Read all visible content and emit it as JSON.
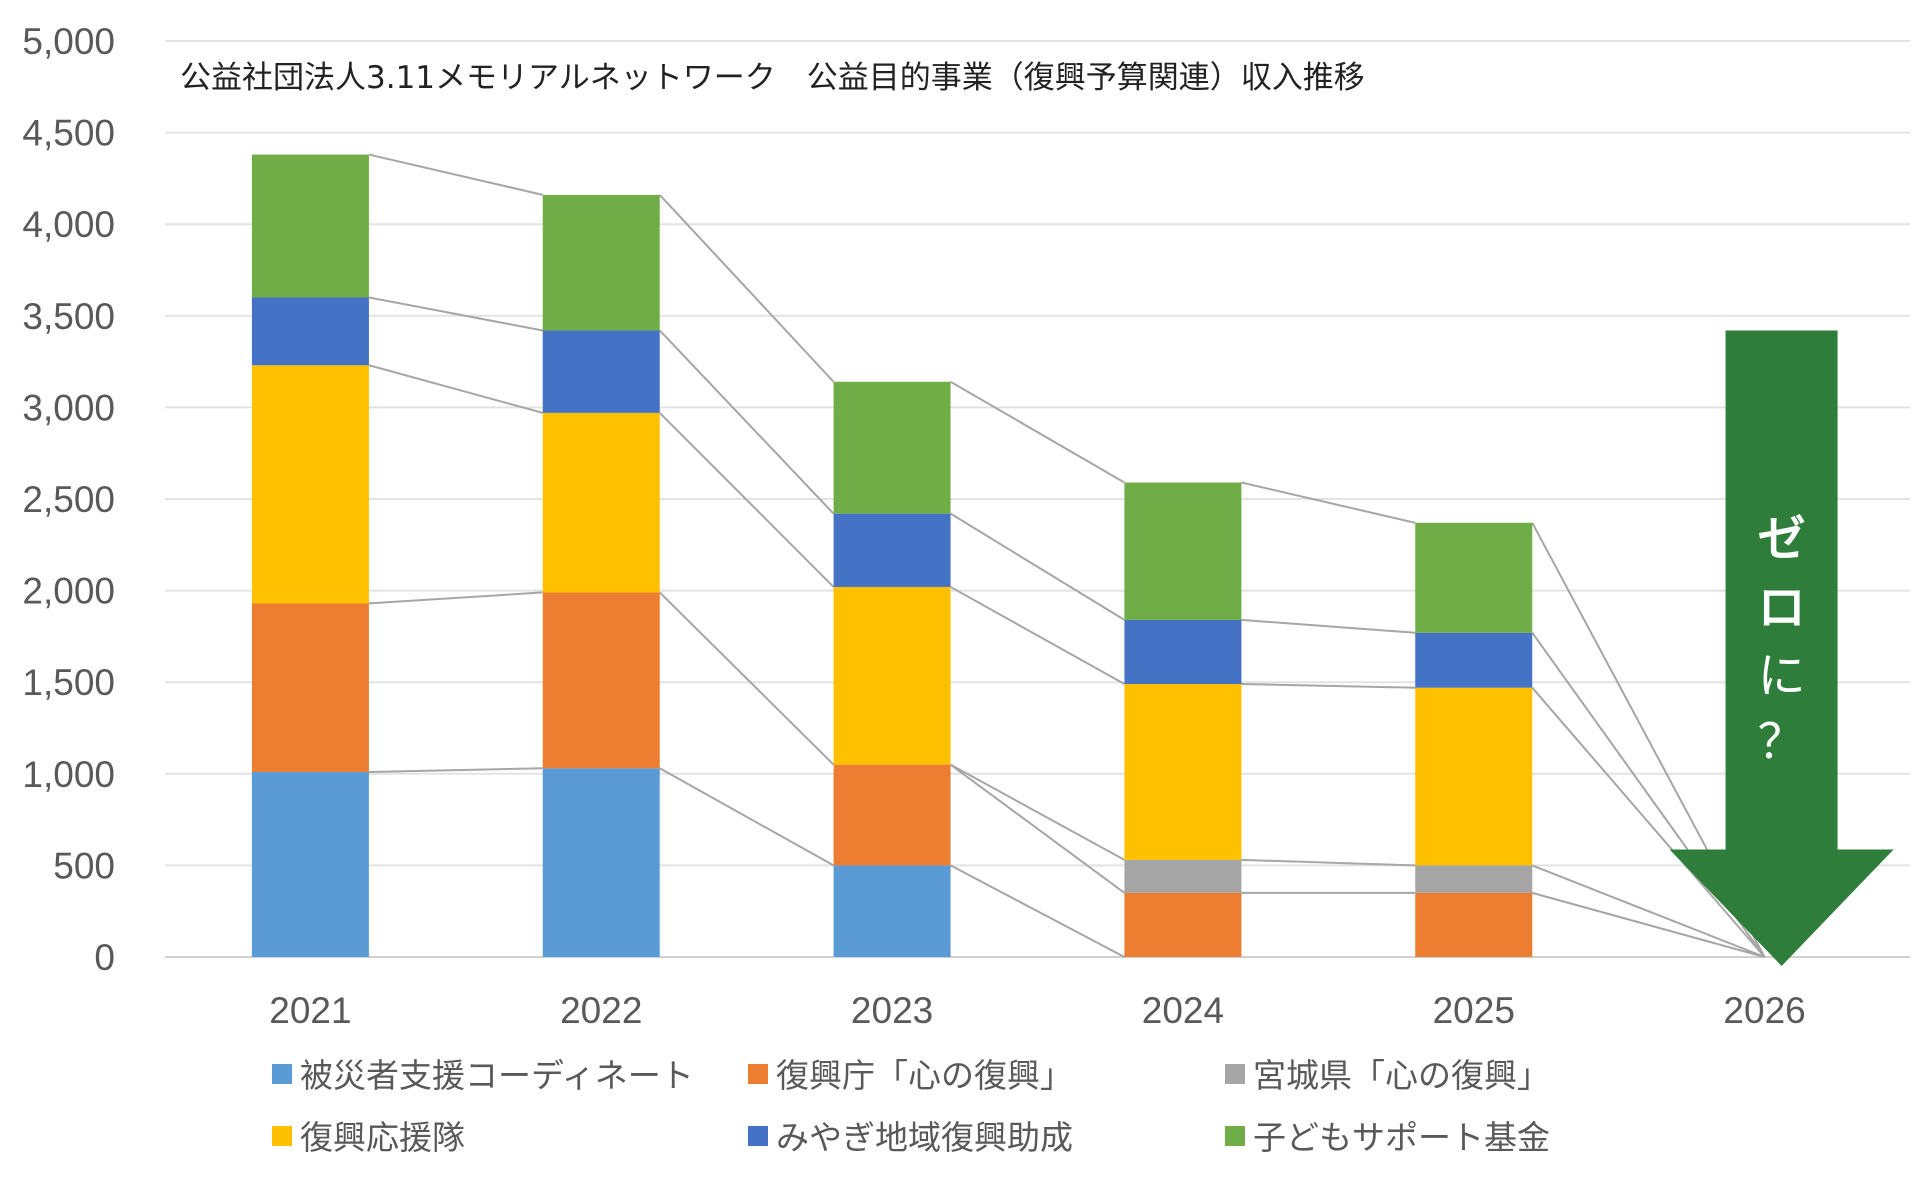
{
  "chart_data": {
    "type": "bar",
    "stacked": true,
    "title": "公益社団法人3.11メモリアルネットワーク　公益目的事業（復興予算関連）収入推移",
    "xlabel": "",
    "ylabel": "",
    "categories": [
      "2021",
      "2022",
      "2023",
      "2024",
      "2025",
      "2026"
    ],
    "ylim": [
      0,
      5000
    ],
    "yticks": [
      0,
      500,
      1000,
      1500,
      2000,
      2500,
      3000,
      3500,
      4000,
      4500,
      5000
    ],
    "ytick_labels": [
      "0",
      "500",
      "1,000",
      "1,500",
      "2,000",
      "2,500",
      "3,000",
      "3,500",
      "4,000",
      "4,500",
      "5,000"
    ],
    "grid": true,
    "legend_position": "bottom",
    "series": [
      {
        "name": "被災者支援コーディネート",
        "color": "#5B9BD5",
        "values": [
          1010,
          1030,
          500,
          0,
          0,
          0
        ]
      },
      {
        "name": "復興庁「心の復興」",
        "color": "#ED7D31",
        "values": [
          920,
          960,
          550,
          350,
          350,
          0
        ]
      },
      {
        "name": "宮城県「心の復興」",
        "color": "#A5A5A5",
        "values": [
          0,
          0,
          0,
          180,
          150,
          0
        ]
      },
      {
        "name": "復興応援隊",
        "color": "#FFC000",
        "values": [
          1300,
          980,
          970,
          960,
          970,
          0
        ]
      },
      {
        "name": "みやぎ地域復興助成",
        "color": "#4472C4",
        "values": [
          370,
          450,
          400,
          350,
          300,
          0
        ]
      },
      {
        "name": "子どもサポート基金",
        "color": "#70AD47",
        "values": [
          780,
          740,
          720,
          750,
          600,
          0
        ]
      }
    ],
    "annotation": {
      "text_lines": [
        "ゼ",
        "ロ",
        "に",
        "？"
      ],
      "color": "#2E7D3A",
      "category": "2026",
      "top_value": 3420
    }
  }
}
